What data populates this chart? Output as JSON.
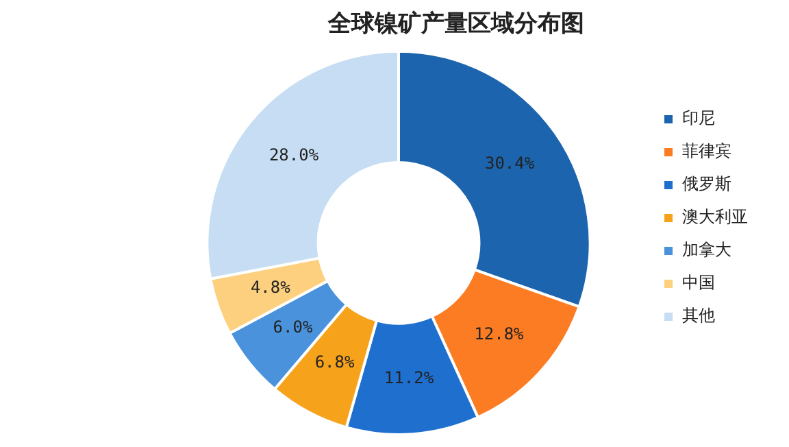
{
  "chart_data": {
    "type": "donut",
    "title": "全球镍矿产量区域分布图",
    "categories": [
      "印尼",
      "菲律宾",
      "俄罗斯",
      "澳大利亚",
      "加拿大",
      "中国",
      "其他"
    ],
    "values": [
      30.4,
      12.8,
      11.2,
      6.8,
      6.0,
      4.8,
      28.0
    ],
    "colors": [
      "#1c64ad",
      "#fb7c22",
      "#1f6fcf",
      "#f7a21b",
      "#4a93dc",
      "#fcd07e",
      "#c6ddf3"
    ],
    "value_labels": [
      "30.4%",
      "12.8%",
      "11.2%",
      "6.8%",
      "6.0%",
      "4.8%",
      "28.0%"
    ],
    "legend": "right"
  }
}
